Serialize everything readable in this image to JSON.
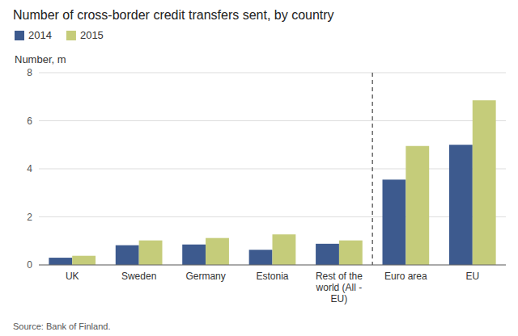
{
  "chart_data": {
    "type": "bar",
    "title": "Number of cross-border credit transfers sent, by country",
    "y_label": "Number, m",
    "source": "Source: Bank of Finland.",
    "categories": [
      "UK",
      "Sweden",
      "Germany",
      "Estonia",
      "Rest of the\nworld (All -\nEU)",
      "Euro area",
      "EU"
    ],
    "series": [
      {
        "name": "2014",
        "color": "#3d5a8e",
        "values": [
          0.3,
          0.82,
          0.85,
          0.63,
          0.88,
          3.55,
          5.0
        ]
      },
      {
        "name": "2015",
        "color": "#c5cc7a",
        "values": [
          0.38,
          1.02,
          1.12,
          1.27,
          1.02,
          4.95,
          6.85
        ]
      }
    ],
    "vline_x": 4.5,
    "ylim": [
      0,
      8
    ],
    "yticks": [
      0,
      2,
      4,
      6,
      8
    ],
    "grid": true,
    "legend": "upper left"
  }
}
